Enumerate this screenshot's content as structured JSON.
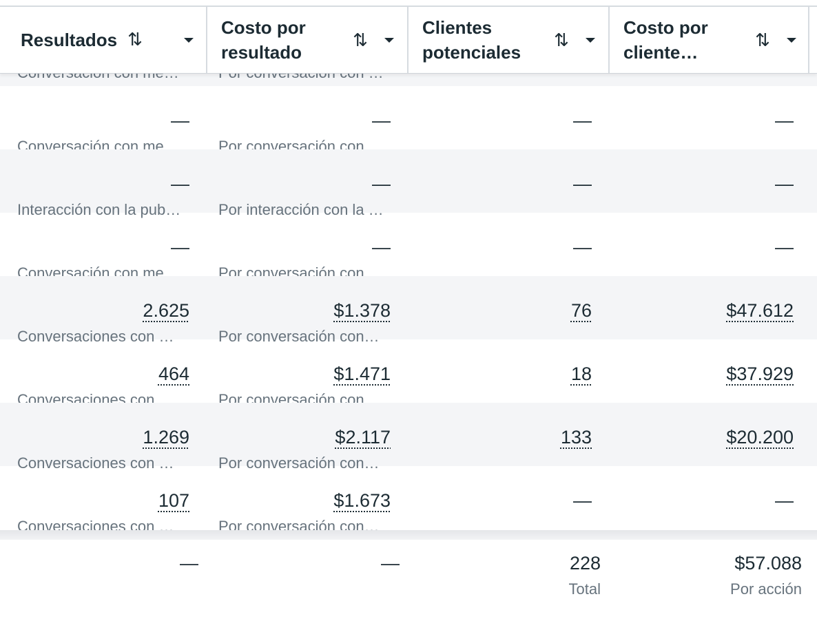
{
  "columns": [
    {
      "title": "Resultados",
      "sort_icon": "⇅",
      "menu_icon": "caret-down"
    },
    {
      "title": "Costo por resultado",
      "sort_icon": "⇅",
      "menu_icon": "caret-down"
    },
    {
      "title": "Clientes potenciales",
      "sort_icon": "⇅",
      "menu_icon": "caret-down"
    },
    {
      "title": "Costo por cliente…",
      "sort_icon": "⇅",
      "menu_icon": "caret-down"
    }
  ],
  "partial_row": {
    "resultados_sub": "Conversación con me…",
    "costo_sub": "Por conversación con …"
  },
  "rows": [
    {
      "resultados": "—",
      "resultados_sub": "Conversación con me…",
      "costo": "—",
      "costo_sub": "Por conversación con …",
      "clientes": "—",
      "costo_cliente": "—"
    },
    {
      "resultados": "—",
      "resultados_sub": "Interacción con la pub…",
      "costo": "—",
      "costo_sub": "Por interacción con la …",
      "clientes": "—",
      "costo_cliente": "—"
    },
    {
      "resultados": "—",
      "resultados_sub": "Conversación con me…",
      "costo": "—",
      "costo_sub": "Por conversación con …",
      "clientes": "—",
      "costo_cliente": "—"
    },
    {
      "resultados": "2.625",
      "resultados_sub": "Conversaciones con …",
      "costo": "$1.378",
      "costo_sub": "Por conversación con…",
      "clientes": "76",
      "costo_cliente": "$47.612"
    },
    {
      "resultados": "464",
      "resultados_sub": "Conversaciones con …",
      "costo": "$1.471",
      "costo_sub": "Por conversación con…",
      "clientes": "18",
      "costo_cliente": "$37.929"
    },
    {
      "resultados": "1.269",
      "resultados_sub": "Conversaciones con …",
      "costo": "$2.117",
      "costo_sub": "Por conversación con…",
      "clientes": "133",
      "costo_cliente": "$20.200"
    },
    {
      "resultados": "107",
      "resultados_sub": "Conversaciones con …",
      "costo": "$1.673",
      "costo_sub": "Por conversación con…",
      "clientes": "—",
      "costo_cliente": "—"
    }
  ],
  "footer": {
    "resultados": "—",
    "costo": "—",
    "clientes": "228",
    "clientes_sub": "Total",
    "costo_cliente": "$57.088",
    "costo_cliente_sub": "Por acción"
  },
  "colors": {
    "text": "#1c2b33",
    "muted": "#67737d",
    "alt_row": "#f4f5f7",
    "border": "#d6dbe0"
  }
}
